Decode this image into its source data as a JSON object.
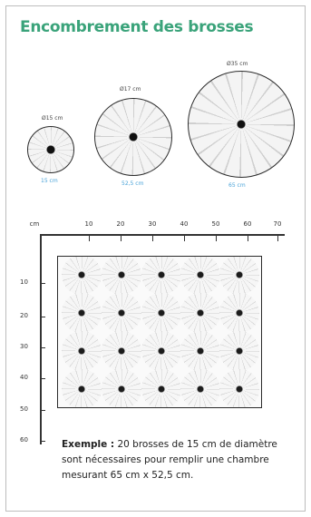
{
  "title": "Encombrement des brosses",
  "brushes": [
    {
      "top_label": "Ø15 cm",
      "bottom_label": "15 cm"
    },
    {
      "top_label": "Ø17 cm",
      "bottom_label": "52,5 cm"
    },
    {
      "top_label": "Ø35 cm",
      "bottom_label": "65 cm"
    }
  ],
  "x_axis": {
    "unit": "cm",
    "ticks": [
      "10",
      "20",
      "30",
      "40",
      "50",
      "60",
      "70"
    ]
  },
  "y_axis": {
    "ticks": [
      "10",
      "20",
      "30",
      "40",
      "50",
      "60"
    ]
  },
  "example": {
    "lead": "Exemple :",
    "text": "20 brosses de 15 cm de diamètre sont nécessaires pour remplir une chambre mesurant 65 cm x 52,5 cm."
  }
}
